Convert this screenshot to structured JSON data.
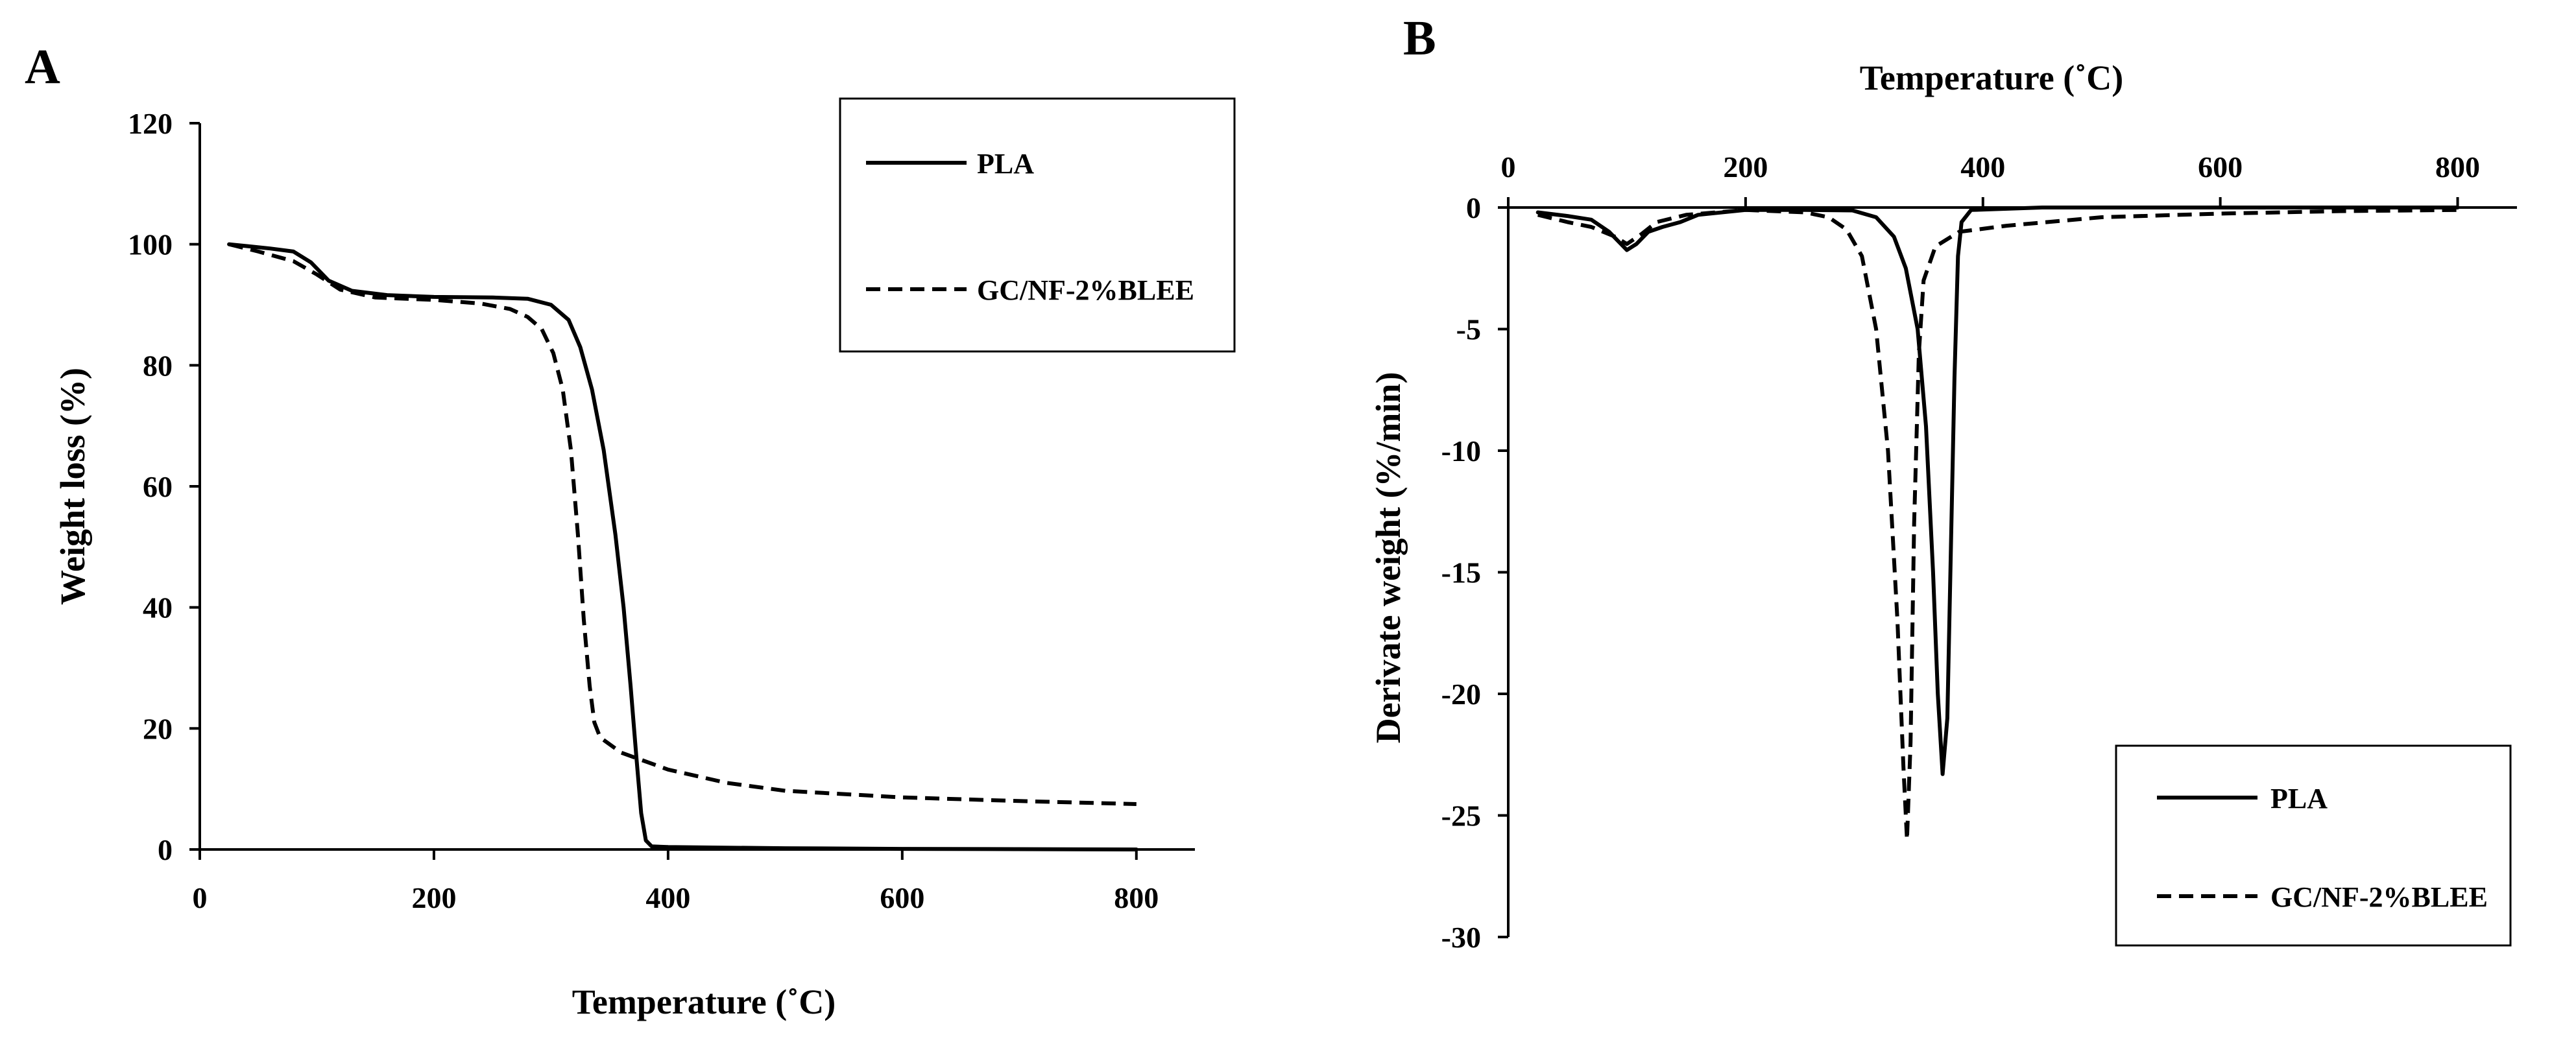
{
  "chart_data": [
    {
      "panel_label": "A",
      "type": "line",
      "title": "",
      "xlabel": "Temperature (˚C)",
      "ylabel": "Weight loss (%)",
      "xlim": [
        0,
        850
      ],
      "ylim": [
        0,
        120
      ],
      "x_ticks": [
        "0",
        "200",
        "400",
        "600",
        "800"
      ],
      "y_ticks": [
        "0",
        "20",
        "40",
        "60",
        "80",
        "100",
        "120"
      ],
      "x_tick_values": [
        0,
        200,
        400,
        600,
        800
      ],
      "y_tick_values": [
        0,
        20,
        40,
        60,
        80,
        100,
        120
      ],
      "grid": false,
      "legend_position": "top-right",
      "series": [
        {
          "name": "PLA",
          "style": "solid",
          "color": "#000000",
          "points": [
            [
              25,
              100
            ],
            [
              60,
              99.3
            ],
            [
              80,
              98.8
            ],
            [
              95,
              97
            ],
            [
              110,
              94
            ],
            [
              130,
              92.3
            ],
            [
              160,
              91.6
            ],
            [
              200,
              91.3
            ],
            [
              250,
              91.2
            ],
            [
              280,
              91
            ],
            [
              300,
              90
            ],
            [
              315,
              87.5
            ],
            [
              325,
              83
            ],
            [
              335,
              76
            ],
            [
              345,
              66
            ],
            [
              355,
              52
            ],
            [
              362,
              40
            ],
            [
              368,
              27
            ],
            [
              373,
              15
            ],
            [
              377,
              6
            ],
            [
              381,
              1.5
            ],
            [
              386,
              0.5
            ],
            [
              400,
              0.4
            ],
            [
              500,
              0.2
            ],
            [
              600,
              0.1
            ],
            [
              800,
              0
            ]
          ]
        },
        {
          "name": "GC/NF-2%BLEE",
          "style": "dashed",
          "color": "#000000",
          "points": [
            [
              25,
              100
            ],
            [
              50,
              98.8
            ],
            [
              80,
              97.2
            ],
            [
              100,
              95
            ],
            [
              120,
              92.5
            ],
            [
              150,
              91.2
            ],
            [
              200,
              90.8
            ],
            [
              240,
              90.2
            ],
            [
              265,
              89.3
            ],
            [
              280,
              88
            ],
            [
              292,
              86
            ],
            [
              302,
              82
            ],
            [
              310,
              76
            ],
            [
              317,
              66
            ],
            [
              323,
              52
            ],
            [
              328,
              38
            ],
            [
              333,
              27
            ],
            [
              337,
              21
            ],
            [
              342,
              18.5
            ],
            [
              360,
              16
            ],
            [
              400,
              13.2
            ],
            [
              450,
              11
            ],
            [
              500,
              9.7
            ],
            [
              600,
              8.6
            ],
            [
              700,
              8
            ],
            [
              800,
              7.5
            ]
          ]
        }
      ]
    },
    {
      "panel_label": "B",
      "type": "line",
      "title": "",
      "xlabel": "Temperature (˚C)",
      "ylabel": "Derivate weight (%/min)",
      "xlim": [
        0,
        850
      ],
      "ylim": [
        -30,
        0
      ],
      "x_axis_position": "top",
      "x_ticks": [
        "0",
        "200",
        "400",
        "600",
        "800"
      ],
      "y_ticks": [
        "0",
        "-5",
        "-10",
        "-15",
        "-20",
        "-25",
        "-30"
      ],
      "x_tick_values": [
        0,
        200,
        400,
        600,
        800
      ],
      "y_tick_values": [
        0,
        -5,
        -10,
        -15,
        -20,
        -25,
        -30
      ],
      "grid": false,
      "legend_position": "bottom-right",
      "series": [
        {
          "name": "PLA",
          "style": "solid",
          "color": "#000000",
          "points": [
            [
              25,
              -0.2
            ],
            [
              50,
              -0.35
            ],
            [
              70,
              -0.5
            ],
            [
              85,
              -1
            ],
            [
              95,
              -1.5
            ],
            [
              100,
              -1.75
            ],
            [
              108,
              -1.5
            ],
            [
              118,
              -1
            ],
            [
              130,
              -0.8
            ],
            [
              145,
              -0.6
            ],
            [
              160,
              -0.3
            ],
            [
              200,
              -0.1
            ],
            [
              250,
              -0.1
            ],
            [
              290,
              -0.12
            ],
            [
              310,
              -0.4
            ],
            [
              325,
              -1.2
            ],
            [
              335,
              -2.5
            ],
            [
              345,
              -5
            ],
            [
              352,
              -9
            ],
            [
              358,
              -15
            ],
            [
              362,
              -20
            ],
            [
              366,
              -23.3
            ],
            [
              370,
              -21
            ],
            [
              373,
              -14
            ],
            [
              376,
              -7
            ],
            [
              379,
              -2
            ],
            [
              382,
              -0.6
            ],
            [
              390,
              -0.1
            ],
            [
              450,
              0
            ],
            [
              800,
              0
            ]
          ]
        },
        {
          "name": "GC/NF-2%BLEE",
          "style": "dashed",
          "color": "#000000",
          "points": [
            [
              25,
              -0.3
            ],
            [
              50,
              -0.6
            ],
            [
              70,
              -0.8
            ],
            [
              90,
              -1.2
            ],
            [
              100,
              -1.5
            ],
            [
              112,
              -1.1
            ],
            [
              125,
              -0.6
            ],
            [
              150,
              -0.3
            ],
            [
              200,
              -0.1
            ],
            [
              250,
              -0.2
            ],
            [
              270,
              -0.4
            ],
            [
              285,
              -0.9
            ],
            [
              298,
              -2
            ],
            [
              310,
              -5
            ],
            [
              320,
              -10
            ],
            [
              328,
              -17
            ],
            [
              333,
              -23
            ],
            [
              336,
              -26
            ],
            [
              339,
              -22
            ],
            [
              342,
              -13
            ],
            [
              346,
              -6
            ],
            [
              350,
              -3
            ],
            [
              360,
              -1.6
            ],
            [
              380,
              -1
            ],
            [
              420,
              -0.75
            ],
            [
              500,
              -0.4
            ],
            [
              600,
              -0.25
            ],
            [
              700,
              -0.15
            ],
            [
              800,
              -0.1
            ]
          ]
        }
      ]
    }
  ]
}
